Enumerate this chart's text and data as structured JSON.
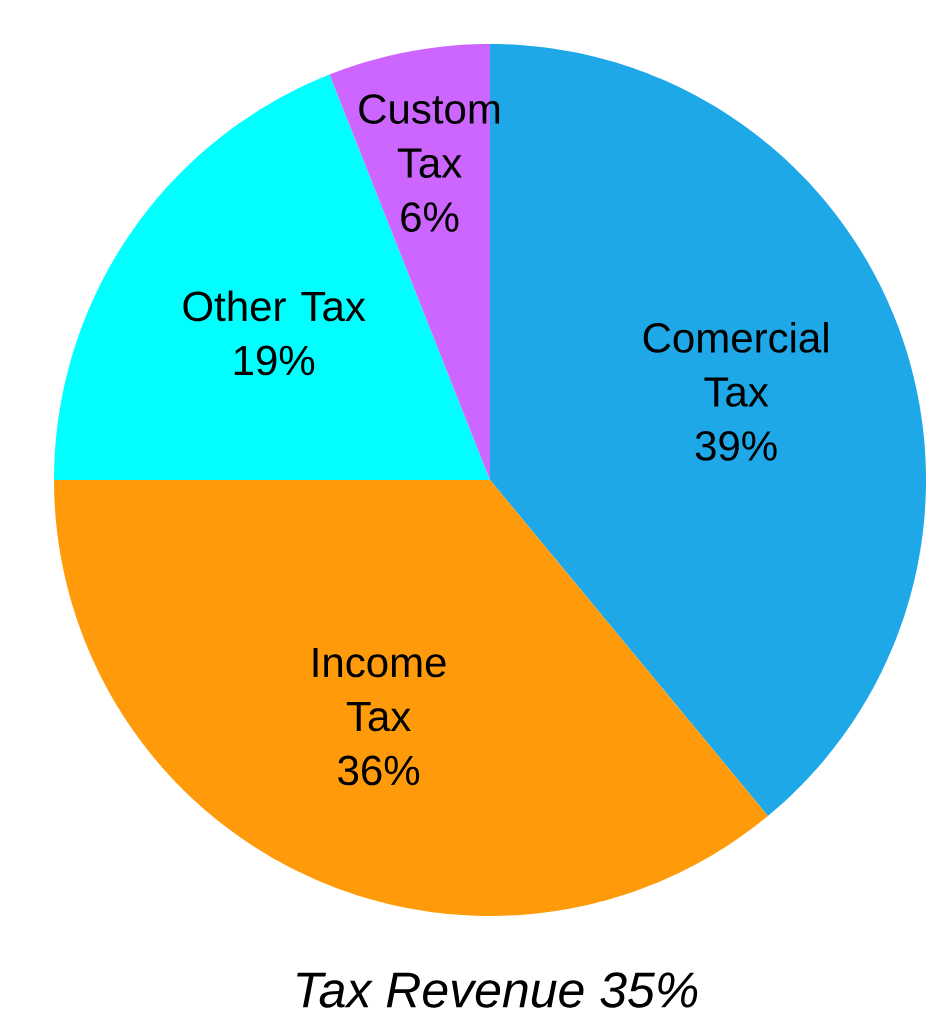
{
  "chart_data": {
    "type": "pie",
    "title": "*Tax Revenue 35%*",
    "categories": [
      "Comercial Tax",
      "Income Tax",
      "Other Tax",
      "Custom Tax"
    ],
    "values": [
      39,
      36,
      19,
      6
    ],
    "value_labels": [
      "39%",
      "36%",
      "19%",
      "6%"
    ],
    "colors": [
      "#1ea8e8",
      "#ff9a0a",
      "#00ffff",
      "#cc66ff"
    ]
  }
}
